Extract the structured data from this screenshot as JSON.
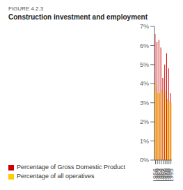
{
  "chart_data": {
    "type": "bar",
    "subtitle": "FIGURE 4.2.3",
    "title": "Construction investment and employment",
    "categories": [
      "1956",
      "1960",
      "1963",
      "1966",
      "1967",
      "1970",
      "1980",
      "1990",
      "1995"
    ],
    "series": [
      {
        "name": "Percentage of Gross Domestic Product",
        "color": "#cc0000",
        "values": [
          6.6,
          6.2,
          6.3,
          5.9,
          4.3,
          5.0,
          5.6,
          4.8,
          3.5
        ]
      },
      {
        "name": "Percentage of all operatives",
        "color": "#ffcc00",
        "values": [
          3.9,
          3.5,
          3.5,
          3.7,
          3.5,
          3.6,
          3.2,
          3.1,
          3.0
        ]
      }
    ],
    "ylim": [
      0,
      7
    ],
    "yticks": [
      {
        "value": 0,
        "label": "0%"
      },
      {
        "value": 1,
        "label": "1%"
      },
      {
        "value": 2,
        "label": "2%"
      },
      {
        "value": 3,
        "label": "3%"
      },
      {
        "value": 4,
        "label": "4%"
      },
      {
        "value": 5,
        "label": "5%"
      },
      {
        "value": 6,
        "label": "6%"
      },
      {
        "value": 7,
        "label": "7%"
      }
    ],
    "grid": false,
    "legend": "bottom"
  }
}
